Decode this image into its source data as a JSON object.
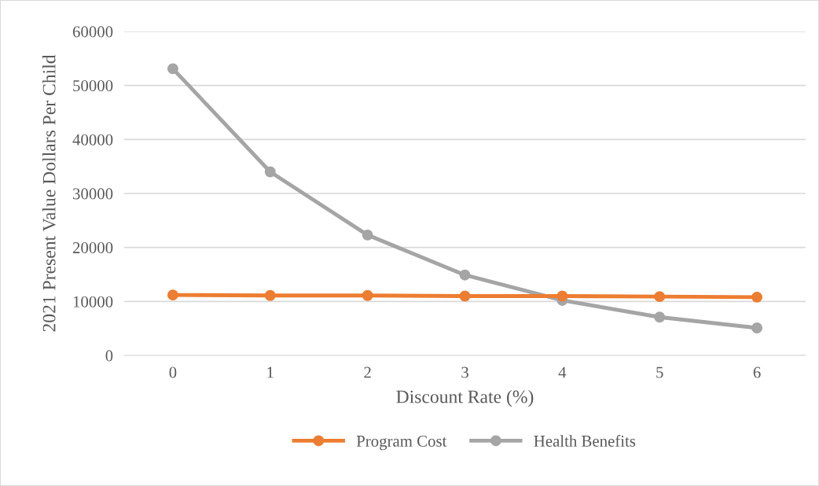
{
  "chart_data": {
    "type": "line",
    "xlabel": "Discount Rate (%)",
    "ylabel": "2021 Present Value Dollars Per Child",
    "categories": [
      "0",
      "1",
      "2",
      "3",
      "4",
      "5",
      "6"
    ],
    "series": [
      {
        "name": "Program Cost",
        "color": "#ed7d31",
        "values": [
          11200,
          11100,
          11100,
          11000,
          11000,
          10900,
          10800
        ]
      },
      {
        "name": "Health Benefits",
        "color": "#a5a5a5",
        "values": [
          53100,
          34000,
          22300,
          14900,
          10200,
          7100,
          5100
        ]
      }
    ],
    "ylim": [
      0,
      60000
    ],
    "yticks": [
      0,
      10000,
      20000,
      30000,
      40000,
      50000,
      60000
    ],
    "grid": "y",
    "legend": "bottom",
    "marker": "circle",
    "line_style": "solid"
  }
}
